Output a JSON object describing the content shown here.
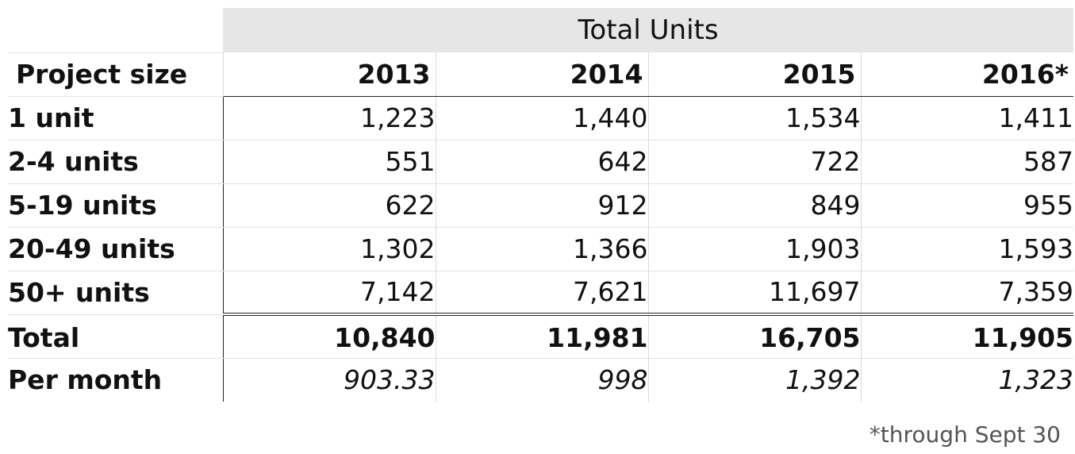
{
  "table": {
    "group_header": "Total Units",
    "label_header": "Project size",
    "years": [
      "2013",
      "2014",
      "2015",
      "2016*"
    ],
    "rows": [
      {
        "label": "1 unit",
        "values": [
          "1,223",
          "1,440",
          "1,534",
          "1,411"
        ]
      },
      {
        "label": "2-4 units",
        "values": [
          "551",
          "642",
          "722",
          "587"
        ]
      },
      {
        "label": "5-19 units",
        "values": [
          "622",
          "912",
          "849",
          "955"
        ]
      },
      {
        "label": "20-49 units",
        "values": [
          "1,302",
          "1,366",
          "1,903",
          "1,593"
        ]
      },
      {
        "label": "50+ units",
        "values": [
          "7,142",
          "7,621",
          "11,697",
          "7,359"
        ]
      }
    ],
    "total": {
      "label": "Total",
      "values": [
        "10,840",
        "11,981",
        "16,705",
        "11,905"
      ]
    },
    "per_month": {
      "label": "Per month",
      "values": [
        "903.33",
        "998",
        "1,392",
        "1,323"
      ]
    }
  },
  "footnote": "*through Sept 30",
  "colors": {
    "header_bg": "#e6e6e6",
    "text": "#111111",
    "footnote_text": "#555555"
  }
}
